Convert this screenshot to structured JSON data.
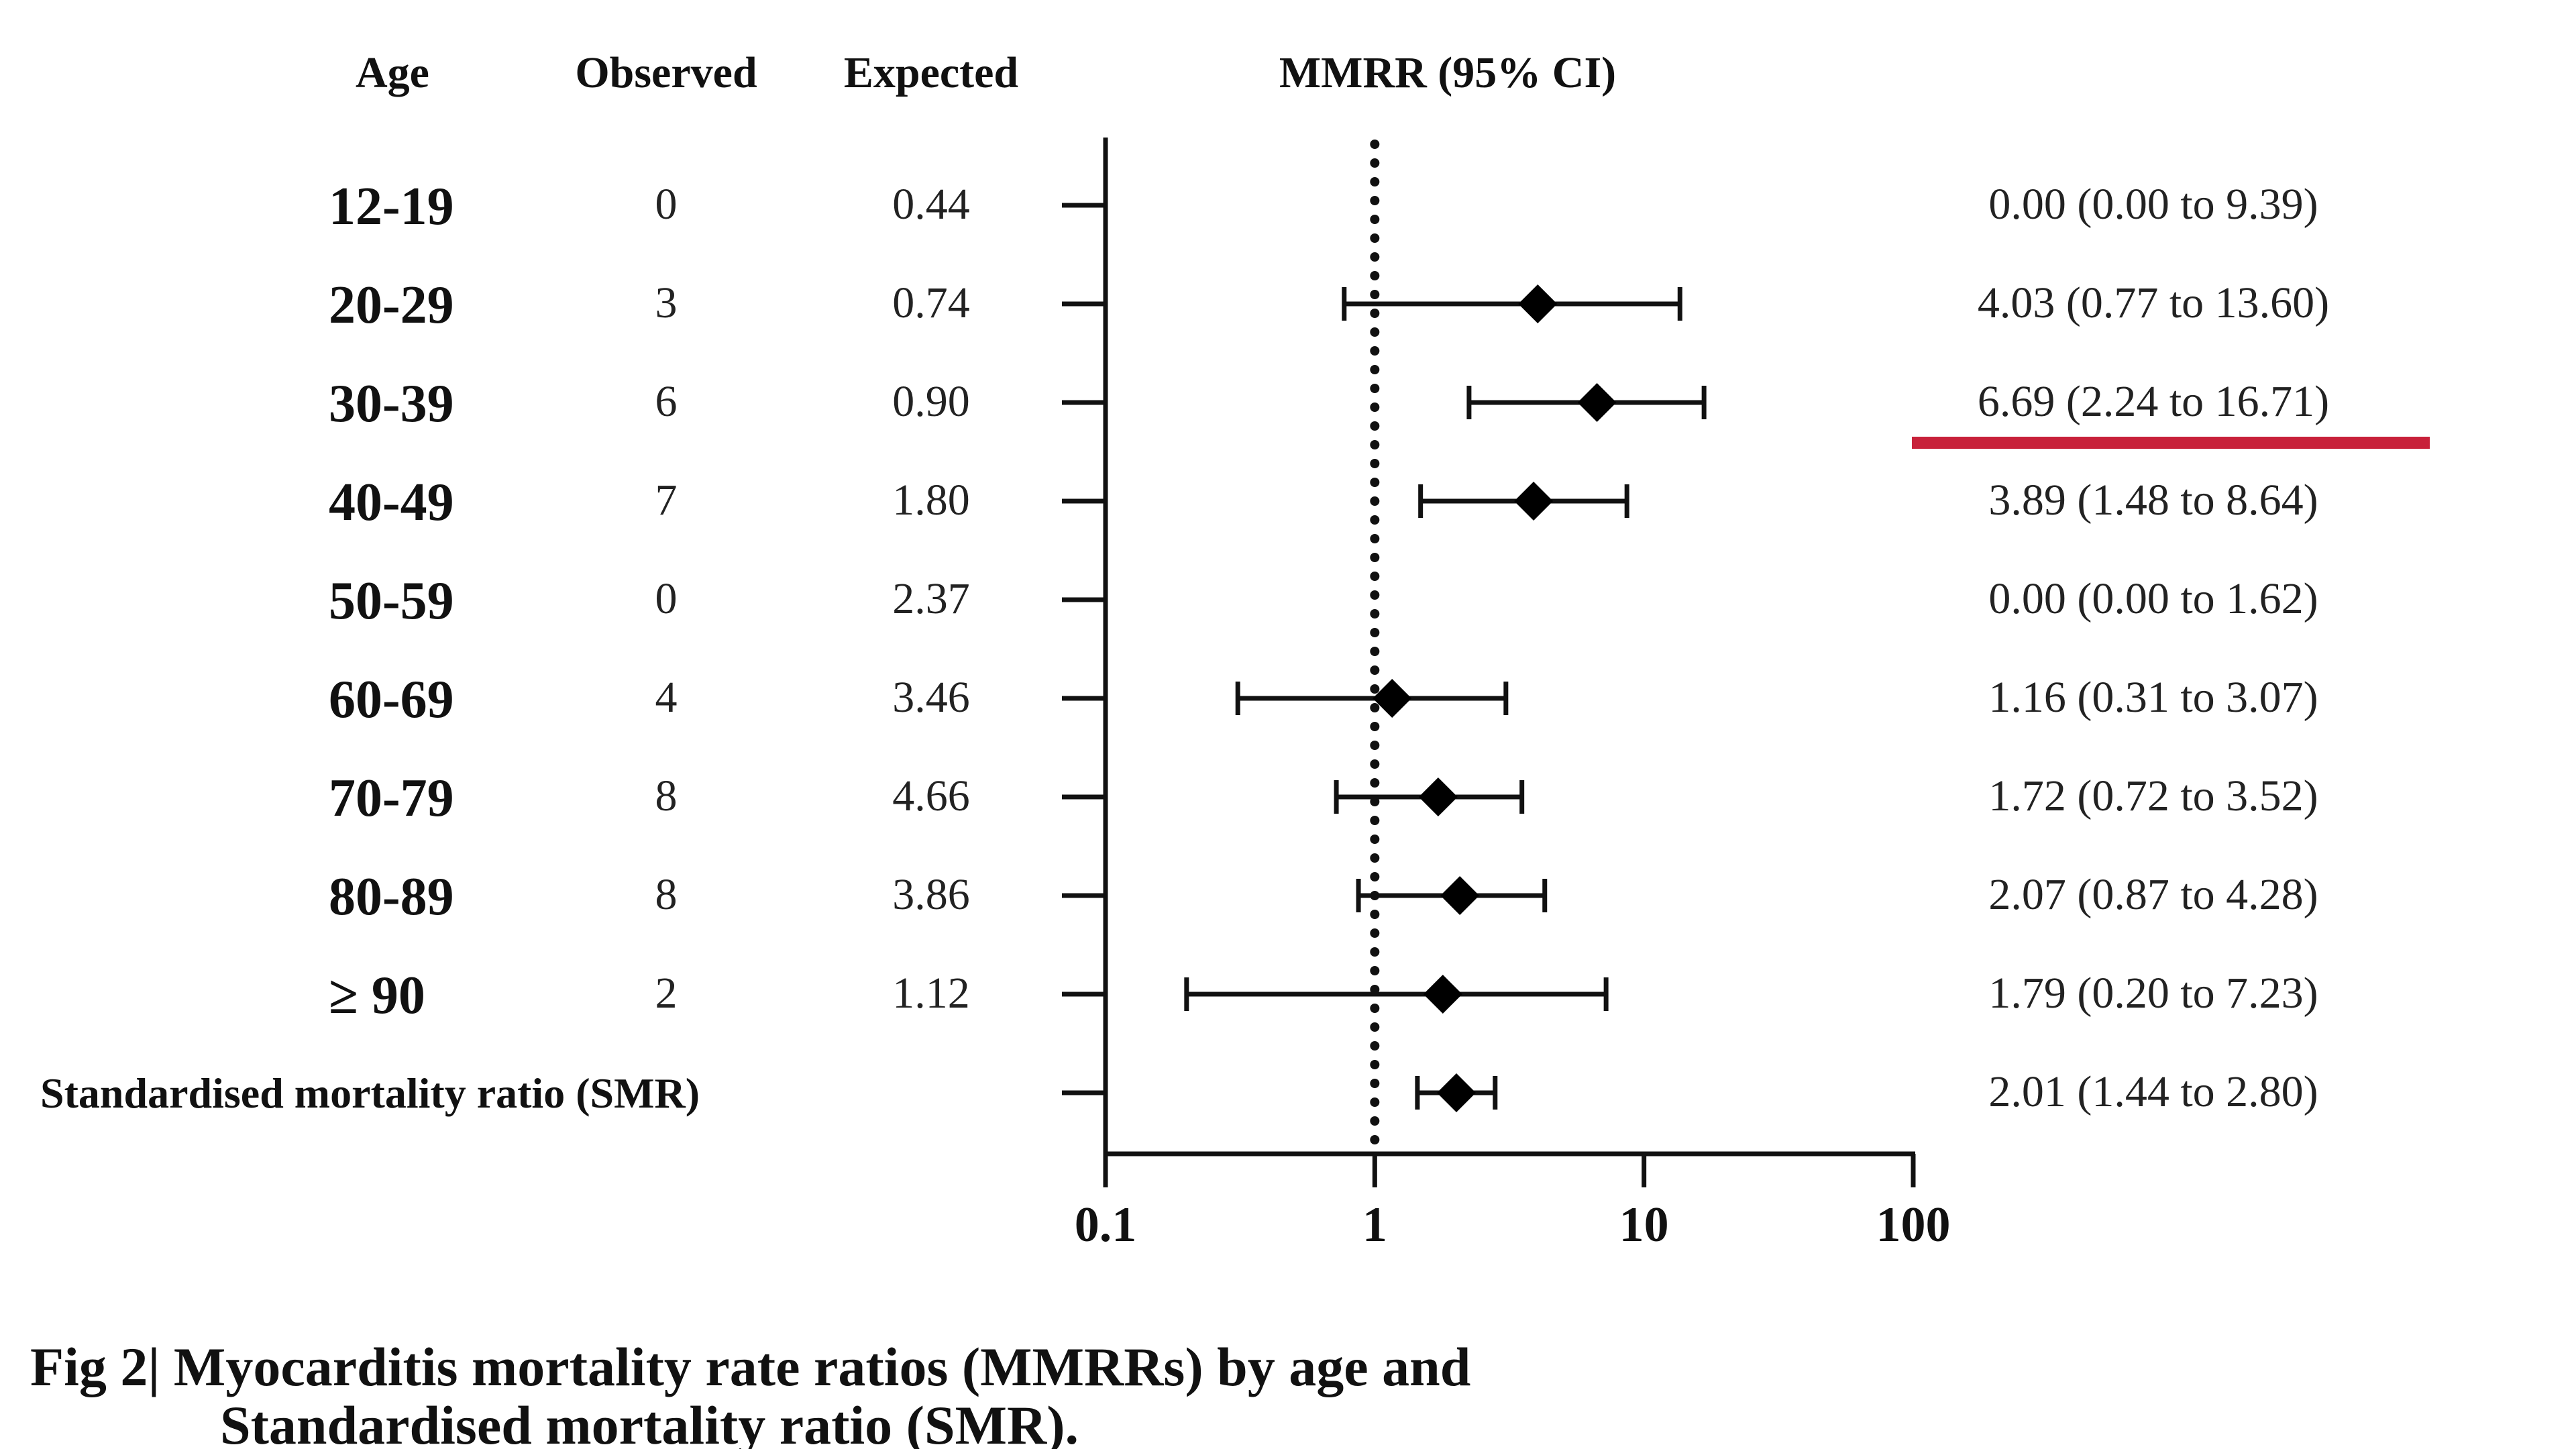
{
  "headers": {
    "age": "Age",
    "observed": "Observed",
    "expected": "Expected",
    "mmrr": "MMRR  (95% CI)"
  },
  "caption": {
    "line1": "Fig 2| Myocarditis mortality rate ratios (MMRRs) by age and",
    "line2": "Standardised mortality ratio (SMR)."
  },
  "highlight_color": "#c8213a",
  "chart_data": {
    "type": "forest",
    "x_scale": "log",
    "xlim": [
      0.1,
      100
    ],
    "x_ticks": [
      {
        "value": 0.1,
        "label": "0.1"
      },
      {
        "value": 1,
        "label": "1"
      },
      {
        "value": 10,
        "label": "10"
      },
      {
        "value": 100,
        "label": "100"
      }
    ],
    "reference_line": 1,
    "rows": [
      {
        "label": "12-19",
        "observed": "0",
        "expected": "0.44",
        "estimate": 0.0,
        "lower": 0.0,
        "upper": 9.39,
        "text": "0.00 (0.00 to 9.39)",
        "show_marker": false,
        "highlighted": false,
        "summary": false
      },
      {
        "label": "20-29",
        "observed": "3",
        "expected": "0.74",
        "estimate": 4.03,
        "lower": 0.77,
        "upper": 13.6,
        "text": "4.03 (0.77 to 13.60)",
        "show_marker": true,
        "highlighted": false,
        "summary": false
      },
      {
        "label": "30-39",
        "observed": "6",
        "expected": "0.90",
        "estimate": 6.69,
        "lower": 2.24,
        "upper": 16.71,
        "text": "6.69 (2.24 to 16.71)",
        "show_marker": true,
        "highlighted": true,
        "summary": false
      },
      {
        "label": "40-49",
        "observed": "7",
        "expected": "1.80",
        "estimate": 3.89,
        "lower": 1.48,
        "upper": 8.64,
        "text": "3.89 (1.48 to 8.64)",
        "show_marker": true,
        "highlighted": false,
        "summary": false
      },
      {
        "label": "50-59",
        "observed": "0",
        "expected": "2.37",
        "estimate": 0.0,
        "lower": 0.0,
        "upper": 1.62,
        "text": "0.00 (0.00 to 1.62)",
        "show_marker": false,
        "highlighted": false,
        "summary": false
      },
      {
        "label": "60-69",
        "observed": "4",
        "expected": "3.46",
        "estimate": 1.16,
        "lower": 0.31,
        "upper": 3.07,
        "text": "1.16 (0.31 to 3.07)",
        "show_marker": true,
        "highlighted": false,
        "summary": false
      },
      {
        "label": "70-79",
        "observed": "8",
        "expected": "4.66",
        "estimate": 1.72,
        "lower": 0.72,
        "upper": 3.52,
        "text": "1.72 (0.72 to 3.52)",
        "show_marker": true,
        "highlighted": false,
        "summary": false
      },
      {
        "label": "80-89",
        "observed": "8",
        "expected": "3.86",
        "estimate": 2.07,
        "lower": 0.87,
        "upper": 4.28,
        "text": "2.07 (0.87 to 4.28)",
        "show_marker": true,
        "highlighted": false,
        "summary": false
      },
      {
        "label": "≥ 90",
        "observed": "2",
        "expected": "1.12",
        "estimate": 1.79,
        "lower": 0.2,
        "upper": 7.23,
        "text": "1.79 (0.20 to 7.23)",
        "show_marker": true,
        "highlighted": false,
        "summary": false
      },
      {
        "label": "Standardised mortality ratio (SMR)",
        "observed": "",
        "expected": "",
        "estimate": 2.01,
        "lower": 1.44,
        "upper": 2.8,
        "text": "2.01 (1.44 to 2.80)",
        "show_marker": true,
        "highlighted": false,
        "summary": true
      }
    ]
  }
}
